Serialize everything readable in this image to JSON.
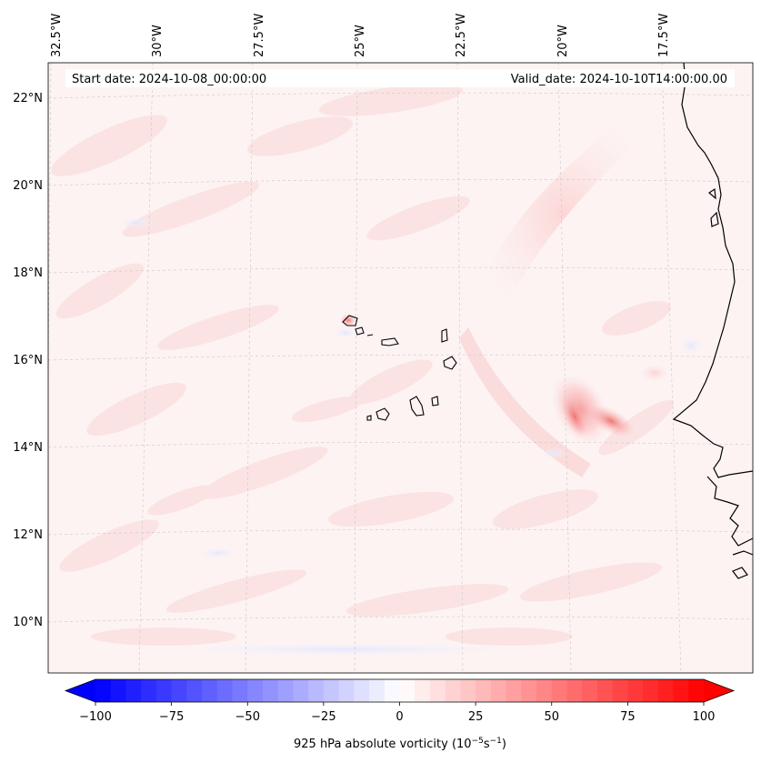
{
  "header": {
    "start_date": "Start date: 2024-10-08_00:00:00",
    "valid_date": "Valid_date: 2024-10-10T14:00:00.00"
  },
  "map": {
    "lon_labels": [
      "32.5°W",
      "30°W",
      "27.5°W",
      "25°W",
      "22.5°W",
      "20°W",
      "17.5°W"
    ],
    "lat_labels": [
      "22°N",
      "20°N",
      "18°N",
      "16°N",
      "14°N",
      "12°N",
      "10°N"
    ],
    "field": "925 hPa absolute vorticity",
    "background_color": "#fdf3f3",
    "coast_color": "#000000",
    "grid": true
  },
  "colorbar": {
    "label": "925 hPa absolute vorticity (10",
    "label_exp1": "−5",
    "label_mid": "s",
    "label_exp2": "−1",
    "label_end": ")",
    "ticks": [
      "−100",
      "−75",
      "−50",
      "−25",
      "0",
      "25",
      "50",
      "75",
      "100"
    ],
    "min": -100,
    "max": 100,
    "colormap": "bwr",
    "low_color": "#0000ff",
    "high_color": "#ff0000"
  }
}
